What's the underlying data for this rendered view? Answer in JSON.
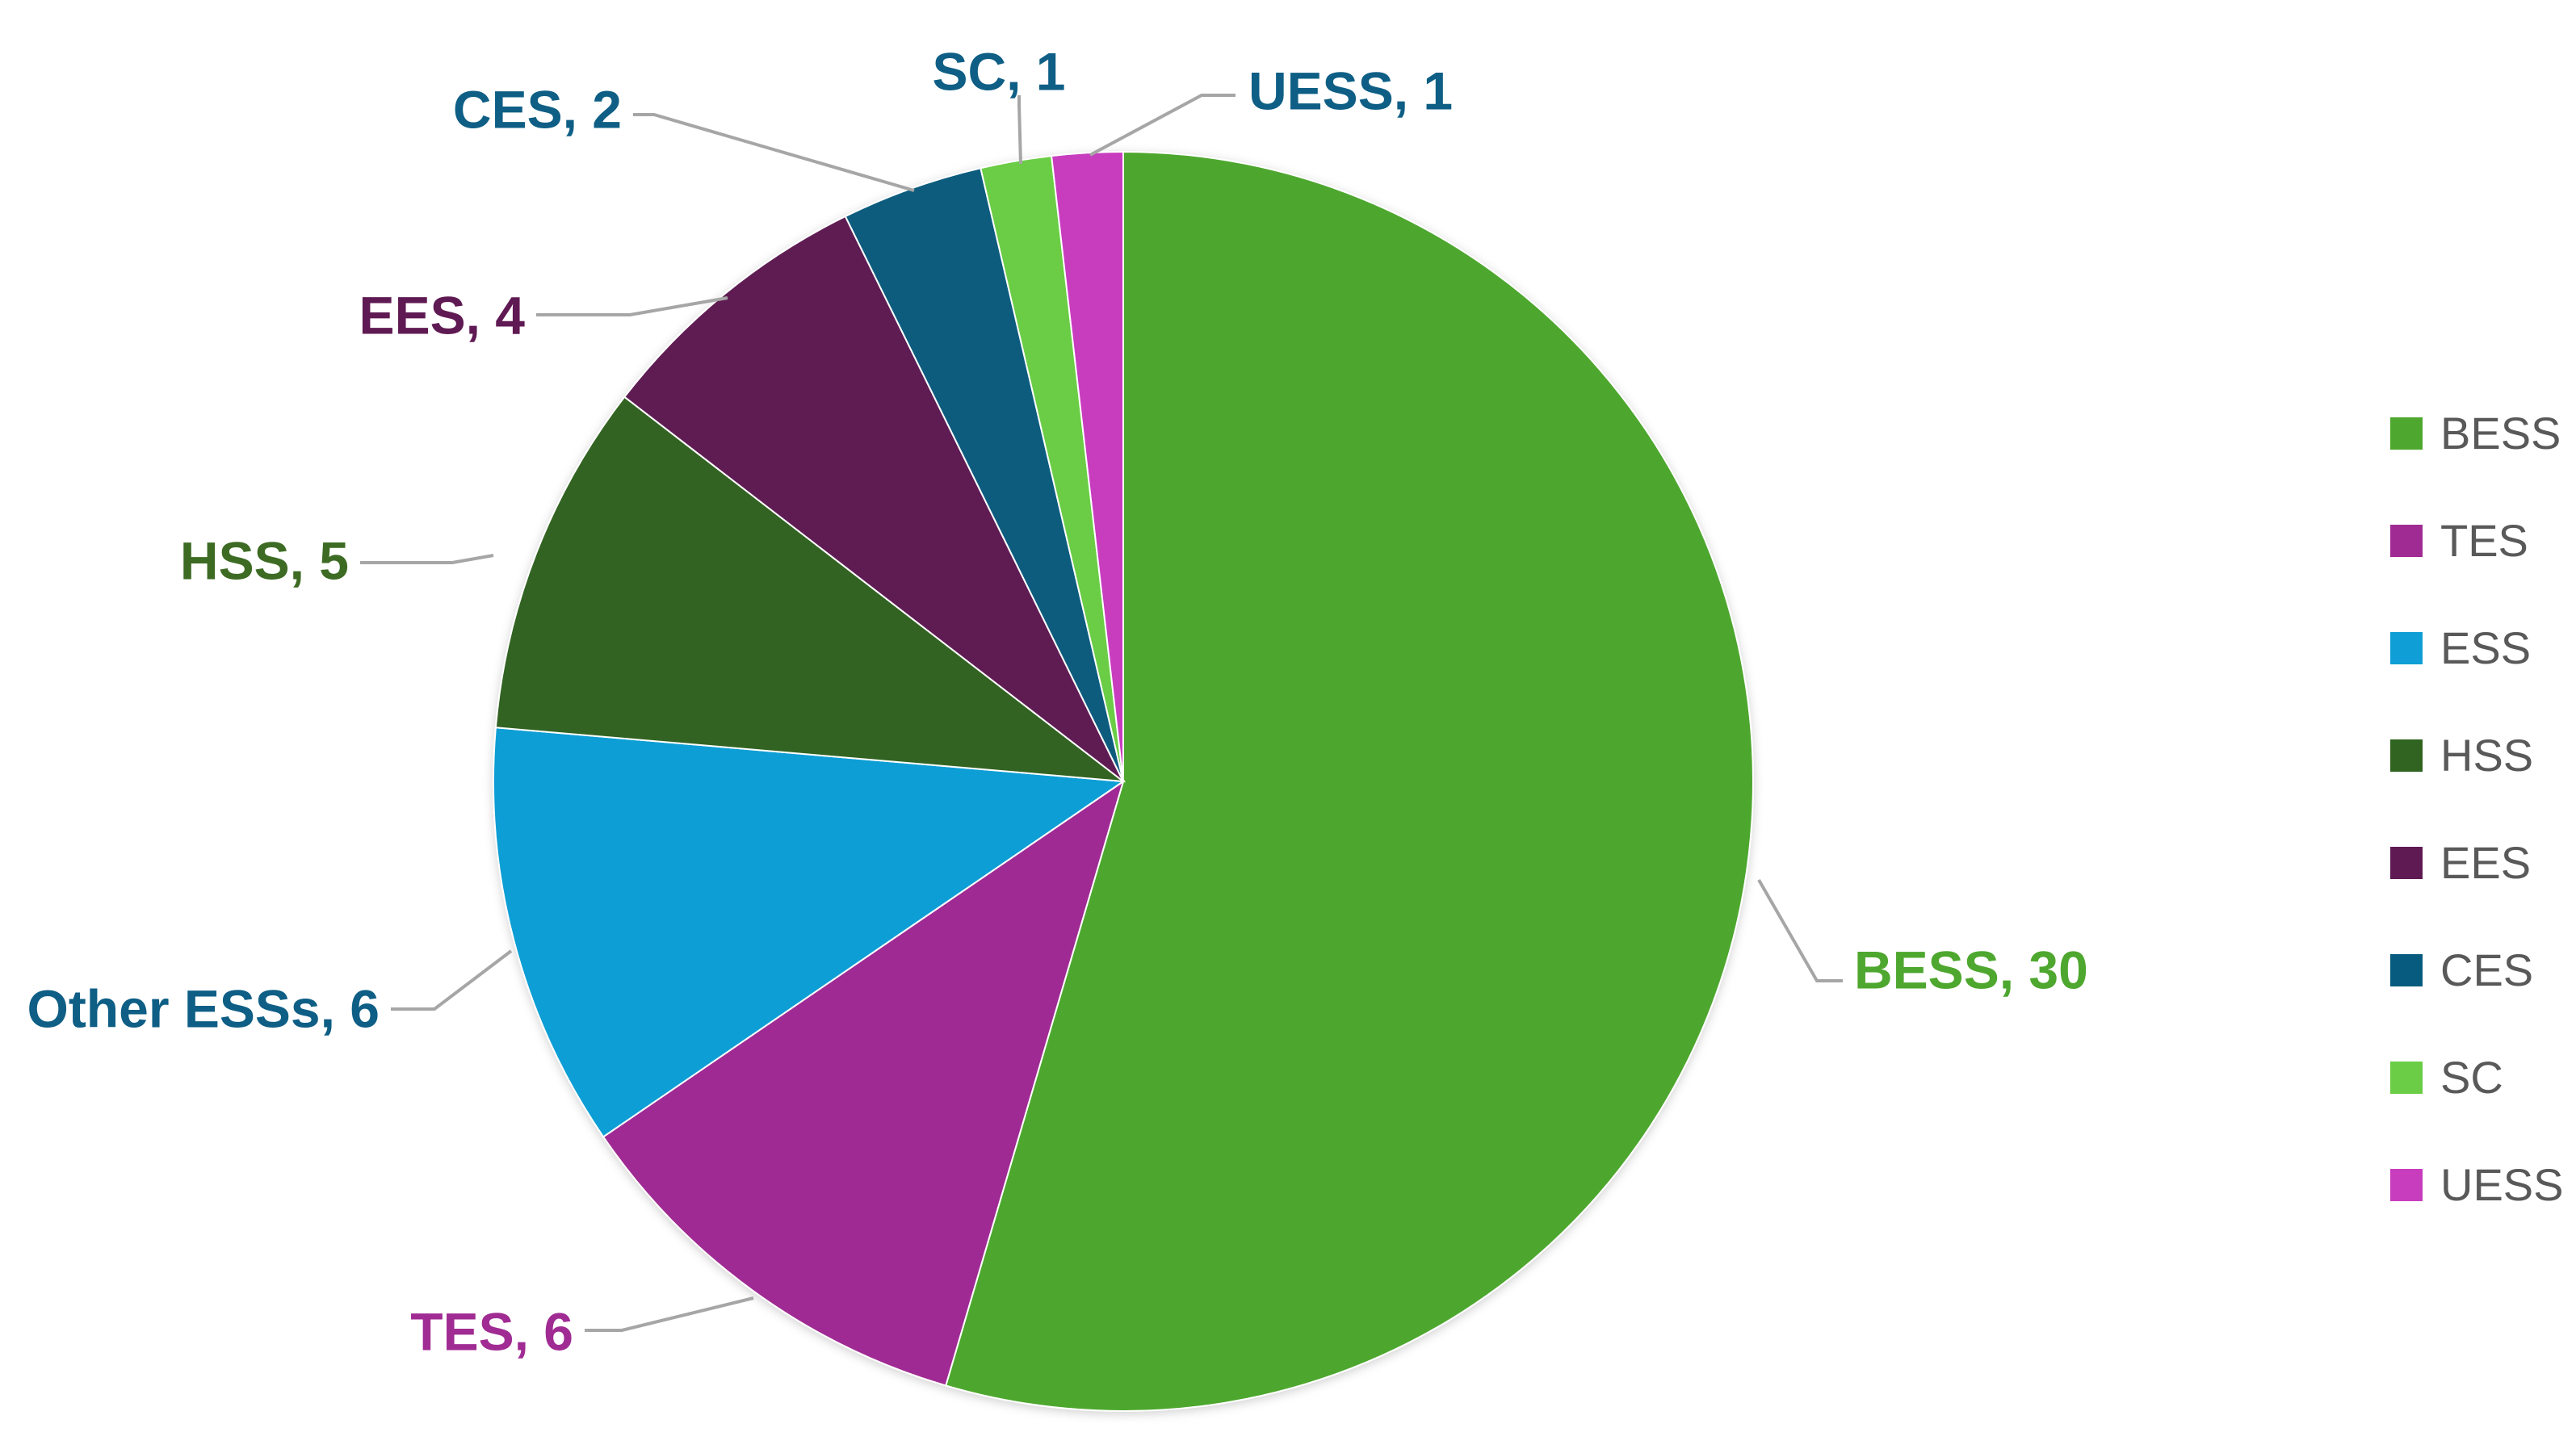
{
  "chart_data": {
    "type": "pie",
    "title": "",
    "slices": [
      {
        "name": "BESS",
        "value": 30,
        "label": "BESS, 30",
        "color": "#4EA72E",
        "label_color": "#4EA72E"
      },
      {
        "name": "TES",
        "value": 6,
        "label": "TES, 6",
        "color": "#A02B93",
        "label_color": "#A02B93"
      },
      {
        "name": "ESS",
        "value": 6,
        "label": "Other ESSs, 6",
        "color": "#0F9ED5",
        "label_color": "#0E5E85"
      },
      {
        "name": "HSS",
        "value": 5,
        "label": "HSS, 5",
        "color": "#306420",
        "label_color": "#3D6B23"
      },
      {
        "name": "EES",
        "value": 4,
        "label": "EES, 4",
        "color": "#5F1A53",
        "label_color": "#5F1A53"
      },
      {
        "name": "CES",
        "value": 2,
        "label": "CES, 2",
        "color": "#075B7E",
        "label_color": "#0E5E85"
      },
      {
        "name": "SC",
        "value": 1,
        "label": "SC, 1",
        "color": "#6ACD45",
        "label_color": "#0E5E85"
      },
      {
        "name": "UESS",
        "value": 1,
        "label": "UESS, 1",
        "color": "#C83CBE",
        "label_color": "#0E5E85"
      }
    ],
    "legend": {
      "position": "right",
      "entries": [
        "BESS",
        "TES",
        "ESS",
        "HSS",
        "EES",
        "CES",
        "SC",
        "UESS"
      ]
    }
  }
}
